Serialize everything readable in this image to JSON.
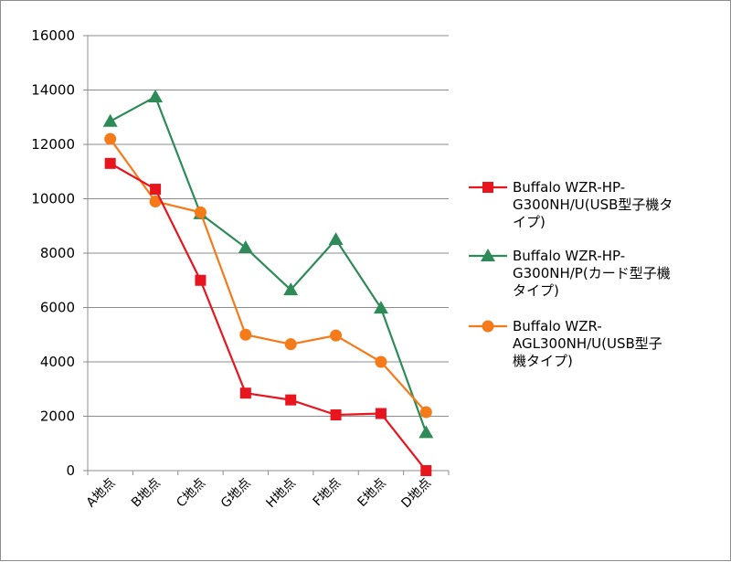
{
  "chart_data": {
    "type": "line",
    "categories": [
      "A地点",
      "B地点",
      "C地点",
      "G地点",
      "H地点",
      "F地点",
      "E地点",
      "D地点"
    ],
    "ylim": [
      0,
      16000
    ],
    "yticks": [
      "0",
      "2000",
      "4000",
      "6000",
      "8000",
      "10000",
      "12000",
      "14000",
      "16000"
    ],
    "grid": true,
    "legend_position": "right",
    "series": [
      {
        "name": "Buffalo WZR-HP-G300NH/U(USB型子機タイプ)",
        "legend_lines": [
          "Buffalo WZR-HP-",
          "G300NH/U(USB型子機タ",
          "イプ)"
        ],
        "color": "#e8141e",
        "marker": "square",
        "values": [
          11300,
          10350,
          7000,
          2850,
          2600,
          2050,
          2100,
          0
        ]
      },
      {
        "name": "Buffalo WZR-HP-G300NH/P(カード型子機タイプ)",
        "legend_lines": [
          "Buffalo WZR-HP-",
          "G300NH/P(カード型子機",
          "タイプ)"
        ],
        "color": "#2e8b57",
        "marker": "triangle",
        "values": [
          12850,
          13750,
          9450,
          8200,
          6650,
          8500,
          5980,
          1400
        ]
      },
      {
        "name": "Buffalo WZR-AGL300NH/U(USB型子機タイプ)",
        "legend_lines": [
          "Buffalo WZR-",
          "AGL300NH/U(USB型子",
          "機タイプ)"
        ],
        "color": "#f47a1a",
        "marker": "circle",
        "values": [
          12200,
          9900,
          9500,
          5000,
          4650,
          4970,
          4000,
          2150
        ]
      }
    ]
  }
}
